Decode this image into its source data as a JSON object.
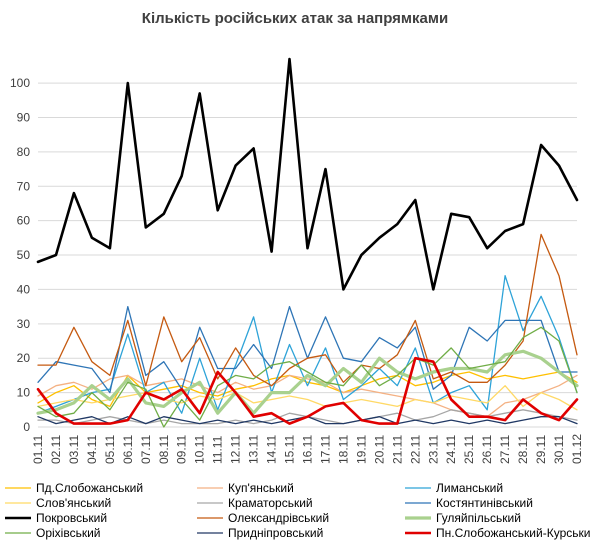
{
  "chart_data": {
    "type": "line",
    "title": "Кількість російських атак за напрямками",
    "xlabel": "",
    "ylabel": "",
    "ylim": [
      0,
      107
    ],
    "yticks": [
      0,
      10,
      20,
      30,
      40,
      50,
      60,
      70,
      80,
      90,
      100
    ],
    "grid": true,
    "legend_position": "bottom",
    "categories": [
      "01.11",
      "02.11",
      "03.11",
      "04.11",
      "05.11",
      "06.11",
      "07.11",
      "08.11",
      "09.11",
      "10.11",
      "11.11",
      "12.11",
      "13.11",
      "14.11",
      "15.11",
      "16.11",
      "17.11",
      "18.11",
      "19.11",
      "20.11",
      "21.11",
      "22.11",
      "23.11",
      "24.11",
      "25.11",
      "26.11",
      "27.11",
      "28.11",
      "29.11",
      "30.11",
      "01.12"
    ],
    "series": [
      {
        "name": "Пд.Слобожанський",
        "color": "#ffc000",
        "width": 1.3,
        "values": [
          7,
          10,
          12,
          8,
          6,
          15,
          10,
          11,
          12,
          10,
          9,
          11,
          12,
          14,
          15,
          13,
          12,
          10,
          12,
          14,
          15,
          12,
          13,
          15,
          16,
          14,
          15,
          14,
          15,
          16,
          13
        ]
      },
      {
        "name": "Куп'янський",
        "color": "#f4b183",
        "width": 1.3,
        "values": [
          9,
          12,
          13,
          11,
          14,
          15,
          12,
          13,
          14,
          12,
          10,
          13,
          11,
          12,
          15,
          14,
          13,
          10,
          11,
          10,
          9,
          8,
          7,
          5,
          4,
          3,
          7,
          8,
          10,
          12,
          15
        ]
      },
      {
        "name": "Лиманський",
        "color": "#2ea3d8",
        "width": 1.3,
        "values": [
          4,
          6,
          8,
          10,
          11,
          27,
          10,
          13,
          4,
          20,
          5,
          18,
          32,
          10,
          24,
          12,
          23,
          8,
          12,
          17,
          12,
          23,
          7,
          10,
          12,
          5,
          44,
          28,
          38,
          26,
          10
        ]
      },
      {
        "name": "Слов'янський",
        "color": "#ffd966",
        "width": 1.3,
        "values": [
          6,
          7,
          8,
          7,
          8,
          9,
          10,
          8,
          7,
          9,
          8,
          10,
          7,
          8,
          9,
          8,
          6,
          7,
          8,
          7,
          6,
          8,
          7,
          9,
          8,
          7,
          12,
          6,
          10,
          8,
          5
        ]
      },
      {
        "name": "Краматорський",
        "color": "#a6a6a6",
        "width": 1.3,
        "values": [
          2,
          2,
          1,
          2,
          3,
          2,
          1,
          2,
          1,
          1,
          1,
          2,
          1,
          2,
          4,
          3,
          2,
          1,
          2,
          3,
          4,
          2,
          3,
          5,
          4,
          3,
          4,
          5,
          4,
          3,
          2
        ]
      },
      {
        "name": "Костянтинівський",
        "color": "#2e75b6",
        "width": 1.3,
        "values": [
          13,
          19,
          18,
          17,
          10,
          35,
          15,
          19,
          11,
          29,
          17,
          17,
          24,
          17,
          35,
          20,
          32,
          20,
          19,
          26,
          23,
          29,
          11,
          15,
          29,
          25,
          31,
          31,
          31,
          16,
          16
        ]
      },
      {
        "name": "Покровський",
        "color": "#000000",
        "width": 2.6,
        "values": [
          48,
          50,
          68,
          55,
          52,
          100,
          58,
          62,
          73,
          97,
          63,
          76,
          81,
          51,
          107,
          52,
          75,
          40,
          50,
          55,
          59,
          66,
          40,
          62,
          61,
          52,
          57,
          59,
          82,
          76,
          66
        ]
      },
      {
        "name": "Олександрівський",
        "color": "#c55a11",
        "width": 1.3,
        "values": [
          18,
          18,
          29,
          19,
          15,
          31,
          12,
          32,
          19,
          26,
          14,
          23,
          15,
          12,
          17,
          20,
          21,
          13,
          18,
          17,
          21,
          31,
          14,
          16,
          13,
          13,
          18,
          25,
          56,
          44,
          21
        ]
      },
      {
        "name": "Гуляйпільський",
        "color": "#a9d18e",
        "width": 3.2,
        "values": [
          4,
          5,
          7,
          12,
          8,
          14,
          7,
          6,
          10,
          13,
          4,
          10,
          4,
          10,
          10,
          15,
          12,
          17,
          13,
          20,
          16,
          14,
          16,
          17,
          17,
          16,
          21,
          22,
          20,
          16,
          12
        ]
      },
      {
        "name": "Оріхівський",
        "color": "#70ad47",
        "width": 1.3,
        "values": [
          6,
          3,
          4,
          10,
          5,
          13,
          11,
          0,
          8,
          2,
          12,
          15,
          14,
          18,
          19,
          16,
          13,
          12,
          18,
          12,
          15,
          20,
          18,
          23,
          17,
          18,
          19,
          26,
          29,
          25,
          10
        ]
      },
      {
        "name": "Придніпровський",
        "color": "#203864",
        "width": 1.3,
        "values": [
          3,
          1,
          2,
          3,
          1,
          3,
          1,
          3,
          2,
          1,
          2,
          1,
          2,
          1,
          2,
          3,
          1,
          1,
          2,
          3,
          1,
          2,
          1,
          2,
          1,
          2,
          1,
          2,
          3,
          3,
          1
        ]
      },
      {
        "name": "Пн.Слобожанський-Курський",
        "color": "#e00000",
        "width": 2.6,
        "values": [
          11,
          4,
          1,
          1,
          1,
          2,
          10,
          8,
          11,
          4,
          16,
          10,
          3,
          4,
          1,
          3,
          6,
          7,
          2,
          1,
          1,
          20,
          19,
          8,
          3,
          3,
          2,
          8,
          4,
          2,
          8
        ]
      }
    ]
  }
}
